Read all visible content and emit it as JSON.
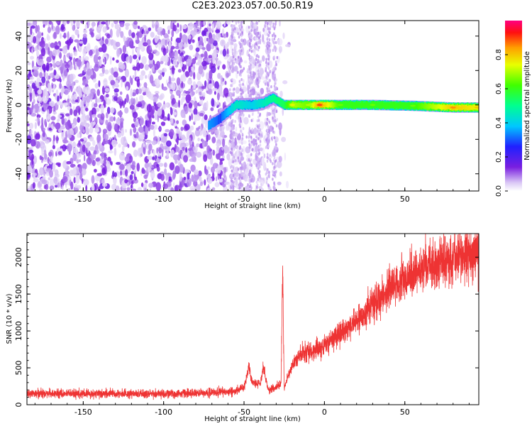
{
  "figure": {
    "title": "C2E3.2023.057.00.50.R19"
  },
  "colorbar": {
    "label": "Normalized spectral amplitude",
    "ticks": [
      "0.0",
      "0.2",
      "0.4",
      "0.6",
      "0.8"
    ],
    "tick_values": [
      0.0,
      0.2,
      0.4,
      0.6,
      0.8
    ],
    "range": [
      0,
      1
    ]
  },
  "chart_data": [
    {
      "type": "heatmap",
      "title": "",
      "xlabel": "Height of straight line (km)",
      "ylabel": "Frequency (Hz)",
      "xlim": [
        -185,
        96
      ],
      "ylim": [
        -50,
        49
      ],
      "x_ticks": [
        -150,
        -100,
        -50,
        0,
        50
      ],
      "x_tick_labels": [
        "-150",
        "-100",
        "-50",
        "0",
        "50"
      ],
      "y_ticks": [
        -40,
        -20,
        0,
        20,
        40
      ],
      "y_tick_labels": [
        "-40",
        "-20",
        "0",
        "20",
        "40"
      ],
      "colormap": "rainbow (white-purple-blue-cyan-green-yellow-red)",
      "features": {
        "noise_region_x": [
          -185,
          -30
        ],
        "signal_track": [
          {
            "x": -72,
            "y": -12,
            "amp": 0.35
          },
          {
            "x": -65,
            "y": -8,
            "amp": 0.3
          },
          {
            "x": -55,
            "y": 0,
            "amp": 0.45
          },
          {
            "x": -45,
            "y": 0,
            "amp": 0.4
          },
          {
            "x": -38,
            "y": 1,
            "amp": 0.45
          },
          {
            "x": -32,
            "y": 4,
            "amp": 0.5
          },
          {
            "x": -25,
            "y": 0,
            "amp": 0.55
          },
          {
            "x": -20,
            "y": 0,
            "amp": 0.7
          },
          {
            "x": -10,
            "y": 0,
            "amp": 0.65
          },
          {
            "x": -3,
            "y": 0,
            "amp": 0.85
          },
          {
            "x": 10,
            "y": 0,
            "amp": 0.6
          },
          {
            "x": 30,
            "y": 0,
            "amp": 0.6
          },
          {
            "x": 55,
            "y": -0.5,
            "amp": 0.6
          },
          {
            "x": 80,
            "y": -1.5,
            "amp": 0.8
          },
          {
            "x": 95,
            "y": -1.5,
            "amp": 0.75
          }
        ]
      }
    },
    {
      "type": "line",
      "title": "",
      "xlabel": "Height of straight line (km)",
      "ylabel": "SNR (10 * v/v)",
      "xlim": [
        -185,
        96
      ],
      "ylim": [
        0,
        2320
      ],
      "x_ticks": [
        -150,
        -100,
        -50,
        0,
        50
      ],
      "x_tick_labels": [
        "-150",
        "-100",
        "-50",
        "0",
        "50"
      ],
      "y_ticks": [
        0,
        500,
        1000,
        1500,
        2000
      ],
      "y_tick_labels": [
        "0",
        "500",
        "1000",
        "1500",
        "2000"
      ],
      "color": "#ee3333",
      "series": [
        {
          "x": [
            -185,
            -170,
            -150,
            -130,
            -110,
            -90,
            -75,
            -65,
            -55,
            -50,
            -47,
            -45,
            -40,
            -38,
            -35,
            -30,
            -27,
            -26,
            -25,
            -24,
            -20,
            -15,
            -10,
            -5,
            0,
            5,
            10,
            15,
            20,
            25,
            30,
            40,
            50,
            60,
            70,
            80,
            90,
            96
          ],
          "y": [
            150,
            150,
            150,
            150,
            150,
            150,
            160,
            170,
            190,
            220,
            520,
            300,
            280,
            500,
            200,
            230,
            300,
            1850,
            200,
            300,
            530,
            680,
            720,
            760,
            800,
            880,
            950,
            1050,
            1150,
            1250,
            1380,
            1560,
            1720,
            1820,
            1920,
            1980,
            2050,
            2080
          ]
        }
      ]
    }
  ]
}
